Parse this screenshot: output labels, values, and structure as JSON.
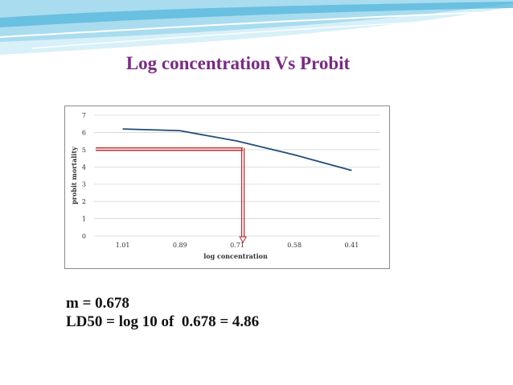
{
  "slide": {
    "title": "Log concentration Vs Probit",
    "notes": [
      "m = 0.678",
      "LD50 = log 10 of  0.678 = 4.86"
    ]
  },
  "colors": {
    "title": "#7a2a84",
    "series_line": "#1f4e79",
    "marker": "#c0262c",
    "gridline": "#d4d4d4",
    "swoosh_light": "#bfe6f3",
    "swoosh_mid": "#8fd0ea",
    "swoosh_dark": "#3aa7d6"
  },
  "chart_data": {
    "type": "line",
    "title": "",
    "xlabel": "log  concentration",
    "ylabel": "probit mortality",
    "categories": [
      "1.01",
      "0.89",
      "0.71",
      "0.58",
      "0.41"
    ],
    "series": [
      {
        "name": "probit mortality",
        "values": [
          6.2,
          6.1,
          5.5,
          4.7,
          3.8
        ]
      }
    ],
    "ylim": [
      0,
      7
    ],
    "yticks": [
      "0",
      "1",
      "2",
      "3",
      "4",
      "5",
      "6",
      "7"
    ],
    "grid": true,
    "legend": "none",
    "annotation": {
      "probit_level": 5.1,
      "x_position": 2.6,
      "description_arrow": "horizontal line at probit 5 to curve, vertical arrow down to x-axis"
    }
  }
}
